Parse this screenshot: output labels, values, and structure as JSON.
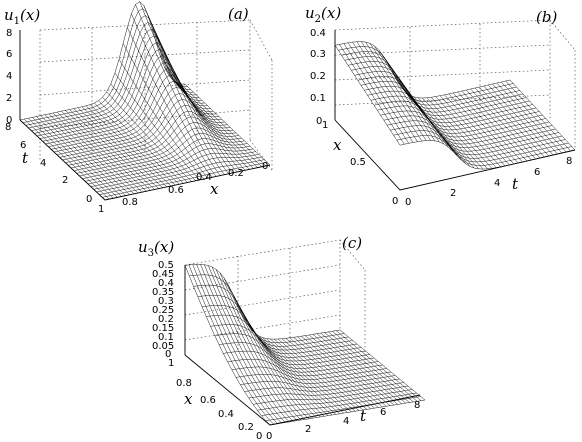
{
  "figure": {
    "panels": [
      {
        "id": "a",
        "tag": "(a)",
        "zlabel": "u1(x)",
        "zlabel_main": "u",
        "zlabel_sub": "1",
        "zlabel_arg": "(x)",
        "xlabel": "x",
        "tlabel": "t",
        "z_ticks": [
          "0",
          "2",
          "4",
          "6",
          "8"
        ],
        "x_ticks": [
          "1",
          "0.8",
          "0.6",
          "0.4",
          "0.2",
          "0"
        ],
        "t_ticks": [
          "0",
          "2",
          "4",
          "6",
          "8"
        ]
      },
      {
        "id": "b",
        "tag": "(b)",
        "zlabel": "u2(x)",
        "zlabel_main": "u",
        "zlabel_sub": "2",
        "zlabel_arg": "(x)",
        "xlabel": "x",
        "tlabel": "t",
        "z_ticks": [
          "0",
          "0.1",
          "0.2",
          "0.3",
          "0.4"
        ],
        "x_ticks": [
          "0",
          "0.5",
          "1"
        ],
        "t_ticks": [
          "0",
          "2",
          "4",
          "6",
          "8"
        ]
      },
      {
        "id": "c",
        "tag": "(c)",
        "zlabel": "u3(x)",
        "zlabel_main": "u",
        "zlabel_sub": "3",
        "zlabel_arg": "(x)",
        "xlabel": "x",
        "tlabel": "t",
        "z_ticks": [
          "0",
          "0.05",
          "0.1",
          "0.15",
          "0.2",
          "0.25",
          "0.3",
          "0.35",
          "0.4",
          "0.45",
          "0.5"
        ],
        "x_ticks": [
          "1",
          "0.8",
          "0.6",
          "0.4",
          "0.2",
          "0"
        ],
        "t_ticks": [
          "0",
          "2",
          "4",
          "6",
          "8"
        ]
      }
    ]
  }
}
